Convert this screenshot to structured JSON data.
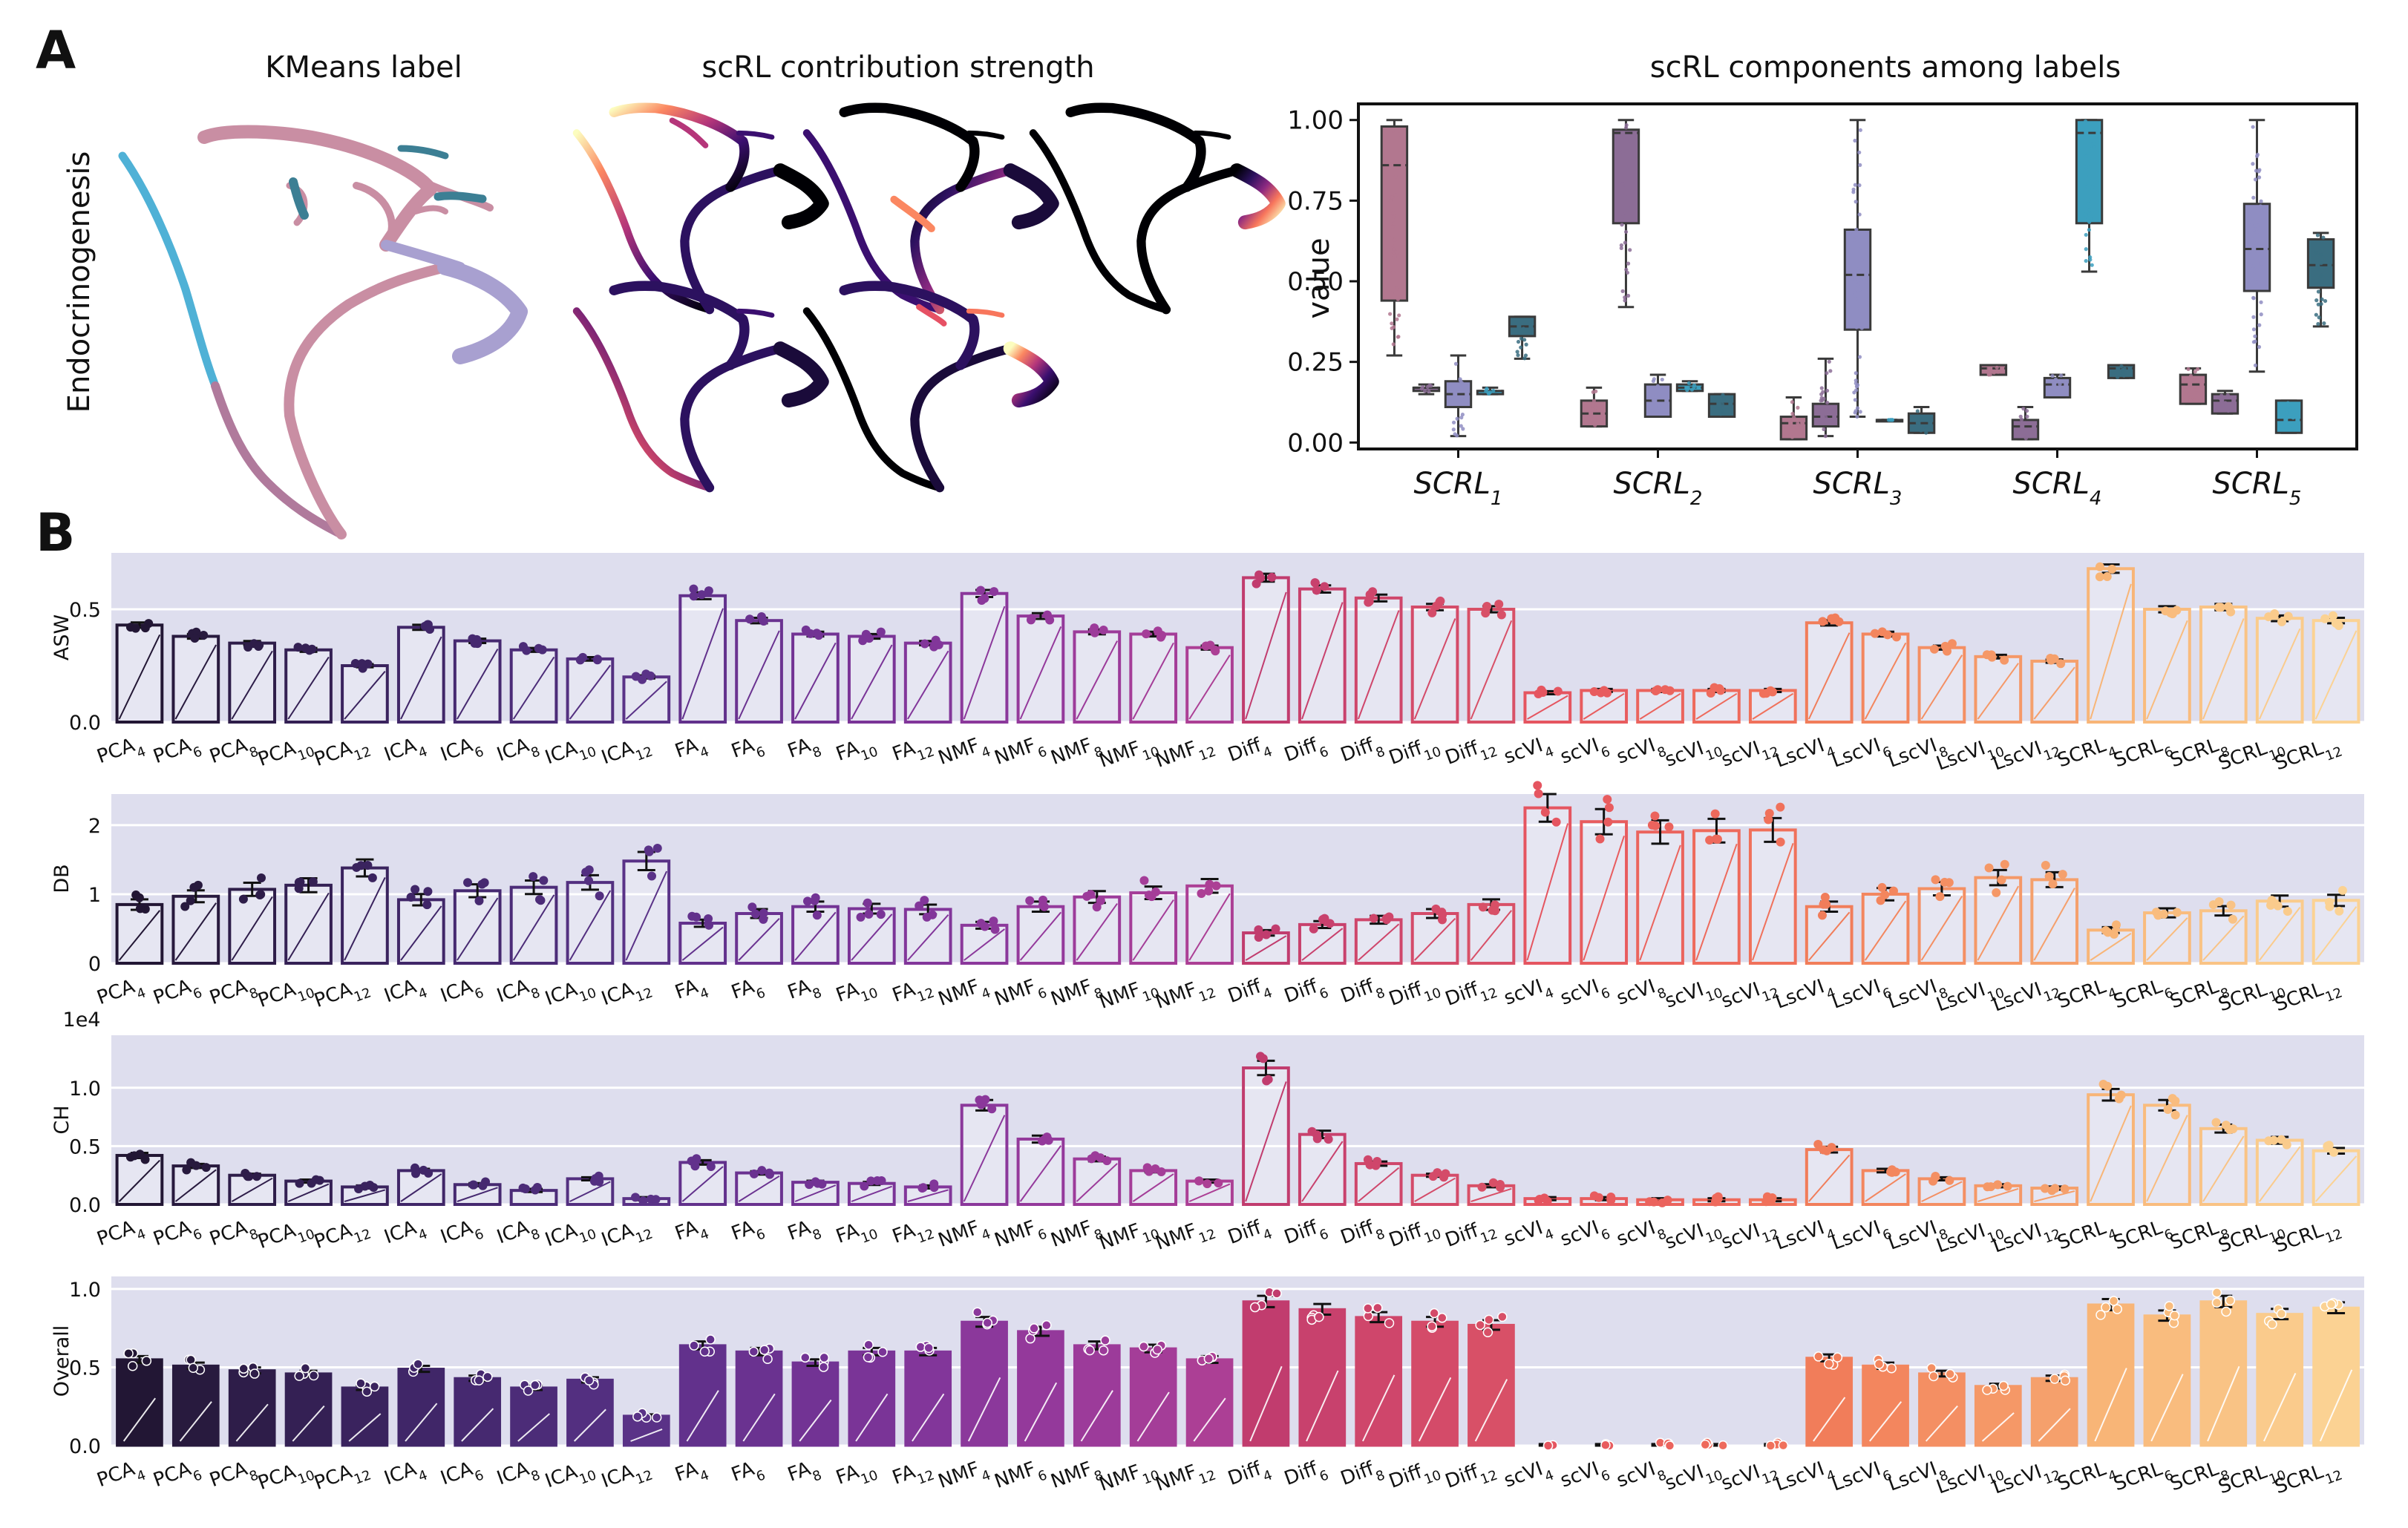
{
  "panel_labels": {
    "a": "A",
    "b": "B"
  },
  "umap": {
    "row_label": "Endocrinogenesis",
    "kmeans_title": "KMeans label",
    "contribution_title": "scRL contribution strength",
    "label_colors": [
      "#c98ea3",
      "#b07a9c",
      "#a8a0d0",
      "#4fb1d6",
      "#3c7f94"
    ],
    "contribution_colormap": "magma"
  },
  "chart_data": [
    {
      "type": "box",
      "title": "scRL components among labels",
      "ylabel": "value",
      "ylim": [
        -0.02,
        1.05
      ],
      "yticks": [
        "0.00",
        "0.25",
        "0.50",
        "0.75",
        "1.00"
      ],
      "categories": [
        {
          "base": "SCRL",
          "sub": "1"
        },
        {
          "base": "SCRL",
          "sub": "2"
        },
        {
          "base": "SCRL",
          "sub": "3"
        },
        {
          "base": "SCRL",
          "sub": "4"
        },
        {
          "base": "SCRL",
          "sub": "5"
        }
      ],
      "label_colors": [
        "#b2778f",
        "#8c6d96",
        "#8f8dc2",
        "#3c9fbe",
        "#3a6d80"
      ],
      "boxes": [
        [
          [
            0.27,
            0.44,
            0.86,
            0.98,
            1.0
          ],
          [
            0.15,
            0.16,
            0.17,
            0.17,
            0.18
          ],
          [
            0.02,
            0.11,
            0.15,
            0.19,
            0.27
          ],
          [
            0.15,
            0.15,
            0.16,
            0.16,
            0.17
          ],
          [
            0.26,
            0.33,
            0.36,
            0.39,
            0.39
          ]
        ],
        [
          [
            0.05,
            0.05,
            0.09,
            0.13,
            0.17
          ],
          [
            0.42,
            0.68,
            0.96,
            0.97,
            1.0
          ],
          [
            0.08,
            0.08,
            0.13,
            0.18,
            0.21
          ],
          [
            0.16,
            0.16,
            0.17,
            0.18,
            0.19
          ],
          [
            0.08,
            0.08,
            0.12,
            0.15,
            0.15
          ]
        ],
        [
          [
            0.01,
            0.01,
            0.06,
            0.08,
            0.14
          ],
          [
            0.02,
            0.05,
            0.08,
            0.12,
            0.26
          ],
          [
            0.08,
            0.35,
            0.52,
            0.66,
            1.0
          ],
          [
            0.07,
            0.07,
            0.07,
            0.07,
            0.07
          ],
          [
            0.03,
            0.03,
            0.06,
            0.09,
            0.11
          ]
        ],
        [
          [
            0.21,
            0.21,
            0.23,
            0.24,
            0.24
          ],
          [
            0.01,
            0.01,
            0.05,
            0.07,
            0.11
          ],
          [
            0.14,
            0.14,
            0.18,
            0.2,
            0.21
          ],
          [
            0.53,
            0.68,
            0.96,
            1.0,
            1.0
          ],
          [
            0.2,
            0.2,
            0.23,
            0.24,
            0.24
          ]
        ],
        [
          [
            0.12,
            0.12,
            0.18,
            0.21,
            0.23
          ],
          [
            0.09,
            0.09,
            0.13,
            0.15,
            0.16
          ],
          [
            0.22,
            0.47,
            0.6,
            0.74,
            1.0
          ],
          [
            0.03,
            0.03,
            0.07,
            0.13,
            0.13
          ],
          [
            0.36,
            0.48,
            0.55,
            0.63,
            0.65
          ]
        ]
      ]
    },
    {
      "type": "bar",
      "ylabel": "ASW",
      "ylim": [
        0,
        0.75
      ],
      "yticks": [
        "0.0",
        "0.5"
      ],
      "ytick_values": [
        0,
        0.5
      ],
      "values": [
        0.43,
        0.38,
        0.35,
        0.32,
        0.25,
        0.42,
        0.36,
        0.32,
        0.28,
        0.2,
        0.56,
        0.45,
        0.39,
        0.38,
        0.35,
        0.57,
        0.47,
        0.4,
        0.39,
        0.33,
        0.64,
        0.59,
        0.55,
        0.51,
        0.5,
        0.13,
        0.14,
        0.14,
        0.14,
        0.14,
        0.44,
        0.39,
        0.33,
        0.29,
        0.27,
        0.68,
        0.5,
        0.51,
        0.46,
        0.45
      ]
    },
    {
      "type": "bar",
      "ylabel": "DB",
      "ylim": [
        0,
        2.45
      ],
      "yticks": [
        "0",
        "1",
        "2"
      ],
      "ytick_values": [
        0,
        1,
        2
      ],
      "values": [
        0.85,
        0.97,
        1.07,
        1.13,
        1.38,
        0.92,
        1.05,
        1.1,
        1.17,
        1.48,
        0.58,
        0.72,
        0.82,
        0.79,
        0.78,
        0.55,
        0.82,
        0.96,
        1.02,
        1.12,
        0.44,
        0.56,
        0.63,
        0.72,
        0.85,
        2.25,
        2.05,
        1.9,
        1.92,
        1.93,
        0.82,
        1.0,
        1.08,
        1.24,
        1.21,
        0.48,
        0.73,
        0.76,
        0.9,
        0.91
      ]
    },
    {
      "type": "bar",
      "ylabel": "CH",
      "scale_label": "1e4",
      "ylim": [
        0,
        1.45
      ],
      "yticks": [
        "0.0",
        "0.5",
        "1.0"
      ],
      "ytick_values": [
        0,
        0.5,
        1.0
      ],
      "values": [
        0.42,
        0.33,
        0.25,
        0.2,
        0.15,
        0.29,
        0.17,
        0.12,
        0.22,
        0.05,
        0.36,
        0.27,
        0.19,
        0.18,
        0.15,
        0.85,
        0.56,
        0.39,
        0.29,
        0.2,
        1.17,
        0.6,
        0.35,
        0.25,
        0.16,
        0.05,
        0.05,
        0.04,
        0.04,
        0.04,
        0.47,
        0.29,
        0.22,
        0.16,
        0.14,
        0.94,
        0.85,
        0.65,
        0.55,
        0.46
      ]
    },
    {
      "type": "bar",
      "ylabel": "Overall",
      "ylim": [
        0,
        1.08
      ],
      "yticks": [
        "0.0",
        "0.5",
        "1.0"
      ],
      "ytick_values": [
        0,
        0.5,
        1.0
      ],
      "values": [
        0.55,
        0.51,
        0.48,
        0.46,
        0.37,
        0.49,
        0.43,
        0.37,
        0.42,
        0.19,
        0.64,
        0.6,
        0.53,
        0.6,
        0.6,
        0.79,
        0.73,
        0.64,
        0.62,
        0.55,
        0.92,
        0.87,
        0.82,
        0.79,
        0.77,
        0.0,
        0.0,
        0.0,
        0.0,
        0.0,
        0.56,
        0.51,
        0.46,
        0.38,
        0.43,
        0.9,
        0.83,
        0.92,
        0.84,
        0.88
      ]
    }
  ],
  "bar_categories": [
    {
      "base": "PCA",
      "sub": "4"
    },
    {
      "base": "PCA",
      "sub": "6"
    },
    {
      "base": "PCA",
      "sub": "8"
    },
    {
      "base": "PCA",
      "sub": "10"
    },
    {
      "base": "PCA",
      "sub": "12"
    },
    {
      "base": "ICA",
      "sub": "4"
    },
    {
      "base": "ICA",
      "sub": "6"
    },
    {
      "base": "ICA",
      "sub": "8"
    },
    {
      "base": "ICA",
      "sub": "10"
    },
    {
      "base": "ICA",
      "sub": "12"
    },
    {
      "base": "FA",
      "sub": "4"
    },
    {
      "base": "FA",
      "sub": "6"
    },
    {
      "base": "FA",
      "sub": "8"
    },
    {
      "base": "FA",
      "sub": "10"
    },
    {
      "base": "FA",
      "sub": "12"
    },
    {
      "base": "NMF",
      "sub": "4"
    },
    {
      "base": "NMF",
      "sub": "6"
    },
    {
      "base": "NMF",
      "sub": "8"
    },
    {
      "base": "NMF",
      "sub": "10"
    },
    {
      "base": "NMF",
      "sub": "12"
    },
    {
      "base": "Diff",
      "sub": "4"
    },
    {
      "base": "Diff",
      "sub": "6"
    },
    {
      "base": "Diff",
      "sub": "8"
    },
    {
      "base": "Diff",
      "sub": "10"
    },
    {
      "base": "Diff",
      "sub": "12"
    },
    {
      "base": "scVI",
      "sub": "4"
    },
    {
      "base": "scVI",
      "sub": "6"
    },
    {
      "base": "scVI",
      "sub": "8"
    },
    {
      "base": "scVI",
      "sub": "10"
    },
    {
      "base": "scVI",
      "sub": "12"
    },
    {
      "base": "LscVI",
      "sub": "4"
    },
    {
      "base": "LscVI",
      "sub": "6"
    },
    {
      "base": "LscVI",
      "sub": "8"
    },
    {
      "base": "LscVI",
      "sub": "10"
    },
    {
      "base": "LscVI",
      "sub": "12"
    },
    {
      "base": "SCRL",
      "sub": "4"
    },
    {
      "base": "SCRL",
      "sub": "6"
    },
    {
      "base": "SCRL",
      "sub": "8"
    },
    {
      "base": "SCRL",
      "sub": "10"
    },
    {
      "base": "SCRL",
      "sub": "12"
    }
  ],
  "bar_colors": [
    "#221634",
    "#281a3e",
    "#2e1d49",
    "#342054",
    "#3a235e",
    "#402668",
    "#462970",
    "#4c2c78",
    "#532f80",
    "#5a3287",
    "#62318c",
    "#6a3290",
    "#723394",
    "#7a3497",
    "#82369a",
    "#8b389b",
    "#94399b",
    "#9c3b9a",
    "#a43d98",
    "#ac3f95",
    "#c13c6e",
    "#c8416d",
    "#cf466b",
    "#d44b69",
    "#d85067",
    "#e55560",
    "#e85c5e",
    "#eb635d",
    "#ee6a5c",
    "#f0715b",
    "#f17d5a",
    "#f3865e",
    "#f48f63",
    "#f59867",
    "#f5a06c",
    "#f8b577",
    "#f9bc7e",
    "#f9c385",
    "#facb8c",
    "#fbd293"
  ],
  "panel_bg": "#dedeee"
}
